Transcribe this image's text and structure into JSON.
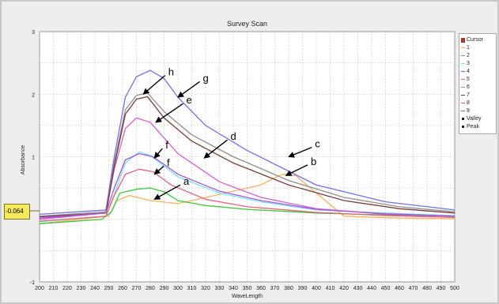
{
  "chart_data": {
    "type": "line",
    "title": "Survey Scan",
    "xlabel": "WaveLength",
    "ylabel": "Absorbance",
    "xlim": [
      200,
      500
    ],
    "ylim": [
      -1,
      3
    ],
    "xticks": [
      200,
      210,
      220,
      230,
      240,
      250,
      260,
      270,
      280,
      290,
      300,
      310,
      320,
      330,
      340,
      350,
      360,
      370,
      380,
      390,
      400,
      410,
      420,
      430,
      440,
      450,
      460,
      470,
      480,
      490,
      500
    ],
    "yticks": [
      -1,
      1,
      2,
      3
    ],
    "grid": true,
    "legend_position": "right",
    "cursor_value": "-0.064",
    "legend": [
      "Cursor",
      "1",
      "2",
      "3",
      "4",
      "5",
      "6",
      "7",
      "8",
      "9",
      "Valley",
      "Peak"
    ],
    "series": [
      {
        "name": "1",
        "color": "#ffb060",
        "x": [
          200,
          250,
          256,
          265,
          280,
          300,
          330,
          360,
          375,
          385,
          400,
          420,
          460,
          500
        ],
        "y": [
          -0.07,
          0.05,
          0.3,
          0.38,
          0.3,
          0.25,
          0.4,
          0.55,
          0.72,
          0.7,
          0.42,
          0.05,
          0.02,
          0.01
        ]
      },
      {
        "name": "2",
        "color": "#3cc83c",
        "x": [
          200,
          245,
          252,
          258,
          270,
          280,
          290,
          300,
          320,
          350,
          400,
          450,
          500
        ],
        "y": [
          -0.07,
          0.0,
          0.12,
          0.42,
          0.48,
          0.5,
          0.44,
          0.3,
          0.22,
          0.16,
          0.1,
          0.07,
          0.05
        ]
      },
      {
        "name": "3",
        "color": "#70e8e8",
        "x": [
          200,
          248,
          254,
          262,
          272,
          280,
          300,
          330,
          360,
          400,
          450,
          500
        ],
        "y": [
          -0.04,
          0.05,
          0.4,
          0.9,
          1.08,
          1.02,
          0.68,
          0.42,
          0.28,
          0.15,
          0.1,
          0.06
        ]
      },
      {
        "name": "4",
        "color": "#7070e8",
        "x": [
          200,
          248,
          254,
          262,
          270,
          280,
          290,
          300,
          320,
          350,
          400,
          450,
          500
        ],
        "y": [
          0.08,
          0.15,
          1.0,
          1.95,
          2.28,
          2.38,
          2.25,
          1.95,
          1.5,
          1.1,
          0.55,
          0.28,
          0.15
        ]
      },
      {
        "name": "5",
        "color": "#d060d0",
        "x": [
          200,
          248,
          254,
          262,
          270,
          280,
          300,
          330,
          360,
          400,
          450,
          500
        ],
        "y": [
          0.0,
          0.1,
          0.8,
          1.45,
          1.62,
          1.55,
          1.05,
          0.6,
          0.35,
          0.17,
          0.08,
          0.05
        ]
      },
      {
        "name": "6",
        "color": "#909090",
        "x": [
          200,
          248,
          254,
          262,
          270,
          278,
          290,
          310,
          340,
          380,
          420,
          460,
          500
        ],
        "y": [
          0.05,
          0.12,
          0.9,
          1.75,
          1.98,
          2.02,
          1.72,
          1.35,
          1.0,
          0.62,
          0.35,
          0.2,
          0.12
        ]
      },
      {
        "name": "7",
        "color": "#783c3c",
        "x": [
          200,
          248,
          254,
          262,
          270,
          278,
          290,
          310,
          340,
          380,
          420,
          460,
          500
        ],
        "y": [
          0.04,
          0.1,
          0.85,
          1.68,
          1.92,
          1.96,
          1.62,
          1.25,
          0.9,
          0.55,
          0.3,
          0.17,
          0.1
        ]
      },
      {
        "name": "8",
        "color": "#e86078",
        "x": [
          200,
          248,
          254,
          262,
          272,
          282,
          295,
          320,
          350,
          400,
          450,
          500
        ],
        "y": [
          -0.03,
          0.05,
          0.38,
          0.72,
          0.8,
          0.76,
          0.55,
          0.32,
          0.2,
          0.11,
          0.06,
          0.03
        ]
      },
      {
        "name": "9",
        "color": "#b050d8",
        "x": [
          200,
          248,
          254,
          262,
          272,
          282,
          300,
          330,
          360,
          400,
          450,
          500
        ],
        "y": [
          0.02,
          0.1,
          0.5,
          0.95,
          1.05,
          1.0,
          0.72,
          0.45,
          0.3,
          0.16,
          0.09,
          0.05
        ]
      }
    ],
    "annotations": [
      {
        "label": "a",
        "text_x": 304,
        "text_y": 0.6,
        "arrow_x": 283,
        "arrow_y": 0.32
      },
      {
        "label": "b",
        "text_x": 396,
        "text_y": 0.92,
        "arrow_x": 378,
        "arrow_y": 0.7
      },
      {
        "label": "c",
        "text_x": 399,
        "text_y": 1.2,
        "arrow_x": 380,
        "arrow_y": 1.0
      },
      {
        "label": "d",
        "text_x": 338,
        "text_y": 1.32,
        "arrow_x": 319,
        "arrow_y": 0.98
      },
      {
        "label": "e",
        "text_x": 306,
        "text_y": 1.9,
        "arrow_x": 284,
        "arrow_y": 1.55
      },
      {
        "label": "f",
        "text_x": 292,
        "text_y": 0.9,
        "arrow_x": 283,
        "arrow_y": 0.72
      },
      {
        "label": "f",
        "text_x": 291,
        "text_y": 1.18,
        "arrow_x": 283,
        "arrow_y": 0.98
      },
      {
        "label": "g",
        "text_x": 318,
        "text_y": 2.25,
        "arrow_x": 300,
        "arrow_y": 1.95
      },
      {
        "label": "h",
        "text_x": 293,
        "text_y": 2.35,
        "arrow_x": 275,
        "arrow_y": 2.0
      }
    ]
  }
}
